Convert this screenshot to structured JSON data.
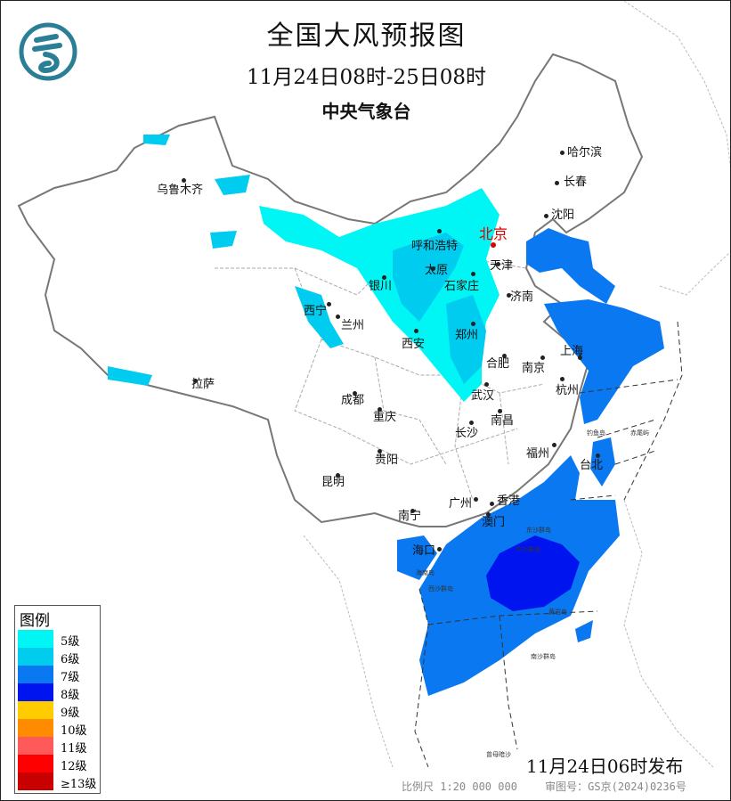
{
  "header": {
    "title": "全国大风预报图",
    "period": "11月24日08时-25日08时",
    "issuer": "中央气象台"
  },
  "logo": {
    "icon": "cma-logo",
    "color": "#2a7f97"
  },
  "cities": [
    {
      "name": "乌鲁木齐"
    },
    {
      "name": "哈尔滨"
    },
    {
      "name": "长春"
    },
    {
      "name": "沈阳"
    },
    {
      "name": "北京"
    },
    {
      "name": "天津"
    },
    {
      "name": "呼和浩特"
    },
    {
      "name": "太原"
    },
    {
      "name": "石家庄"
    },
    {
      "name": "银川"
    },
    {
      "name": "济南"
    },
    {
      "name": "西宁"
    },
    {
      "name": "兰州"
    },
    {
      "name": "西安"
    },
    {
      "name": "郑州"
    },
    {
      "name": "合肥"
    },
    {
      "name": "南京"
    },
    {
      "name": "上海"
    },
    {
      "name": "杭州"
    },
    {
      "name": "拉萨"
    },
    {
      "name": "成都"
    },
    {
      "name": "武汉"
    },
    {
      "name": "重庆"
    },
    {
      "name": "南昌"
    },
    {
      "name": "长沙"
    },
    {
      "name": "福州"
    },
    {
      "name": "贵阳"
    },
    {
      "name": "台北"
    },
    {
      "name": "昆明"
    },
    {
      "name": "广州"
    },
    {
      "name": "香港"
    },
    {
      "name": "澳门"
    },
    {
      "name": "南宁"
    },
    {
      "name": "海口"
    }
  ],
  "islands": [
    "钓鱼岛",
    "赤尾屿",
    "东沙群岛",
    "海南岛",
    "西沙群岛",
    "中沙群岛",
    "黄岩岛",
    "南沙群岛",
    "曾母暗沙"
  ],
  "legend": {
    "title": "图例",
    "items": [
      {
        "label": "5级",
        "color": "#00f5f5"
      },
      {
        "label": "6级",
        "color": "#00ccf0"
      },
      {
        "label": "7级",
        "color": "#0a78f0"
      },
      {
        "label": "8级",
        "color": "#0014f0"
      },
      {
        "label": "9级",
        "color": "#ffcc00"
      },
      {
        "label": "10级",
        "color": "#ff8c00"
      },
      {
        "label": "11级",
        "color": "#ff5a5a"
      },
      {
        "label": "12级",
        "color": "#ff0000"
      },
      {
        "label": "≥13级",
        "color": "#c80000"
      }
    ]
  },
  "issued": "11月24日06时发布",
  "footer": {
    "scale": "比例尺 1:20 000 000",
    "approval": "审图号：GS京(2024)0236号"
  }
}
